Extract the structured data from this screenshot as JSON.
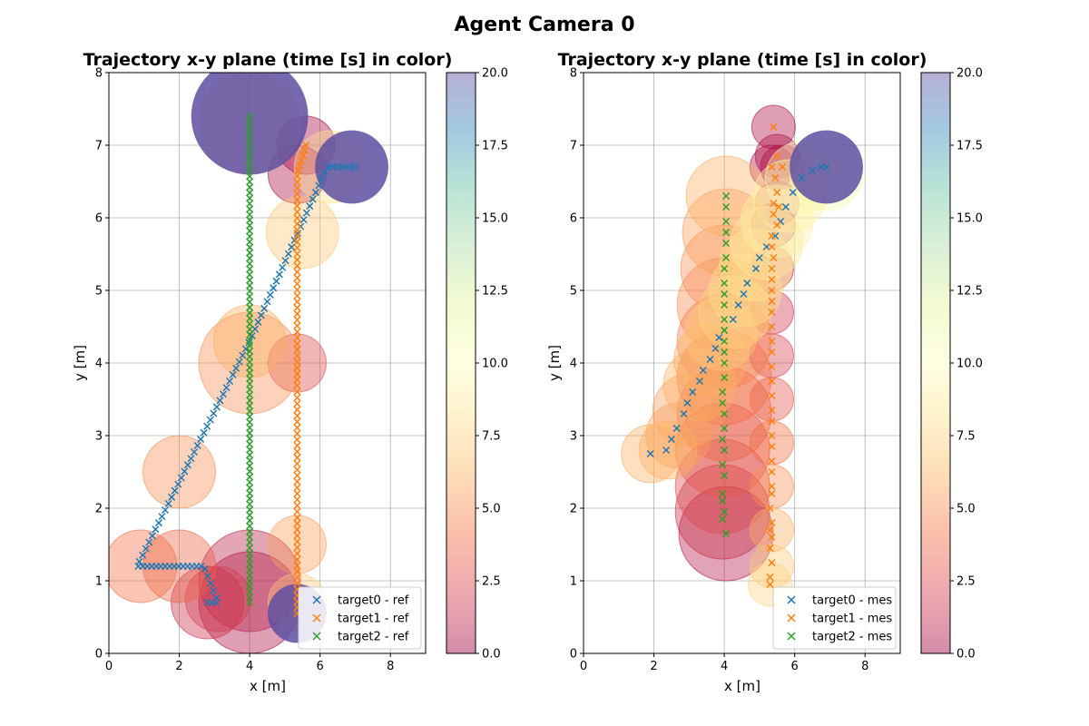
{
  "figure": {
    "suptitle": "Agent Camera 0"
  },
  "colorbar": {
    "min": 0.0,
    "max": 20.0,
    "ticks": [
      "0.0",
      "2.5",
      "5.0",
      "7.5",
      "10.0",
      "12.5",
      "15.0",
      "17.5",
      "20.0"
    ],
    "colormap": "Spectral",
    "alpha": 0.4
  },
  "colors": {
    "target0": "#1f77b4",
    "target1": "#ff7f0e",
    "target2": "#2ca02c",
    "grid": "#b0b0b0"
  },
  "chart_data": [
    {
      "type": "scatter",
      "title": "Trajectory x-y plane  (time [s] in color)",
      "xlabel": "x [m]",
      "ylabel": "y [m]",
      "xlim": [
        0,
        9
      ],
      "ylim": [
        0,
        8
      ],
      "xticks": [
        "0",
        "2",
        "4",
        "6",
        "8"
      ],
      "yticks": [
        "0",
        "1",
        "2",
        "3",
        "4",
        "5",
        "6",
        "7",
        "8"
      ],
      "grid": true,
      "legend_position": "lower-right",
      "series": [
        {
          "name": "target0 - ref",
          "marker": "x",
          "path": [
            [
              2.8,
              0.7
            ],
            [
              3.1,
              0.7
            ],
            [
              2.7,
              1.2
            ],
            [
              0.8,
              1.2
            ],
            [
              4.0,
              4.3
            ],
            [
              6.2,
              6.7
            ],
            [
              7.0,
              6.7
            ]
          ],
          "points": 90,
          "circles": [
            [
              2.8,
              0.7,
              0.5,
              1.5
            ],
            [
              3.1,
              0.75,
              0.45,
              2.0
            ],
            [
              2.0,
              1.2,
              0.5,
              3.5
            ],
            [
              0.9,
              1.2,
              0.5,
              4.0
            ],
            [
              2.0,
              2.5,
              0.5,
              5.0
            ],
            [
              4.0,
              4.3,
              0.5,
              6.0
            ],
            [
              5.5,
              5.8,
              0.5,
              7.0
            ],
            [
              6.3,
              6.7,
              0.5,
              8.0
            ],
            [
              6.9,
              6.7,
              0.5,
              20.0
            ]
          ]
        },
        {
          "name": "target1 - ref",
          "marker": "x",
          "path": [
            [
              5.6,
              7.0
            ],
            [
              5.35,
              6.6
            ],
            [
              5.35,
              0.55
            ]
          ],
          "points": 80,
          "circles": [
            [
              5.6,
              7.0,
              0.4,
              0.2
            ],
            [
              5.35,
              6.6,
              0.4,
              0.5
            ],
            [
              5.35,
              4.0,
              0.4,
              2.5
            ],
            [
              5.35,
              1.5,
              0.4,
              5.5
            ],
            [
              5.35,
              0.7,
              0.4,
              7.0
            ],
            [
              5.35,
              0.55,
              0.4,
              20.0
            ]
          ]
        },
        {
          "name": "target2 - ref",
          "marker": "x",
          "path": [
            [
              4.0,
              7.4
            ],
            [
              4.0,
              0.7
            ]
          ],
          "points": 90,
          "circles": [
            [
              4.0,
              7.3,
              0.7,
              7.0
            ],
            [
              4.0,
              4.0,
              0.7,
              5.0
            ],
            [
              4.0,
              1.0,
              0.7,
              1.0
            ],
            [
              4.0,
              0.7,
              0.7,
              0.5
            ],
            [
              4.0,
              7.4,
              0.8,
              20.0
            ]
          ]
        }
      ]
    },
    {
      "type": "scatter",
      "title": "Trajectory x-y plane  (time [s] in color)",
      "xlabel": "x [m]",
      "ylabel": "y [m]",
      "xlim": [
        0,
        9
      ],
      "ylim": [
        0,
        8
      ],
      "xticks": [
        "0",
        "2",
        "4",
        "6",
        "8"
      ],
      "yticks": [
        "0",
        "1",
        "2",
        "3",
        "4",
        "5",
        "6",
        "7",
        "8"
      ],
      "grid": true,
      "legend_position": "lower-right",
      "series": [
        {
          "name": "target0 - mes",
          "marker": "x",
          "points_list": [
            [
              1.9,
              2.75
            ],
            [
              2.35,
              2.8
            ],
            [
              2.5,
              2.95
            ],
            [
              2.65,
              3.1
            ],
            [
              2.85,
              3.3
            ],
            [
              2.95,
              3.45
            ],
            [
              3.1,
              3.6
            ],
            [
              3.3,
              3.75
            ],
            [
              3.4,
              3.9
            ],
            [
              3.6,
              4.05
            ],
            [
              3.75,
              4.2
            ],
            [
              3.85,
              4.35
            ],
            [
              4.0,
              4.45
            ],
            [
              4.25,
              4.6
            ],
            [
              4.4,
              4.8
            ],
            [
              4.55,
              4.95
            ],
            [
              4.65,
              5.1
            ],
            [
              4.9,
              5.3
            ],
            [
              5.0,
              5.45
            ],
            [
              5.2,
              5.6
            ],
            [
              5.45,
              5.75
            ],
            [
              5.6,
              5.95
            ],
            [
              5.75,
              6.15
            ],
            [
              5.95,
              6.35
            ],
            [
              6.2,
              6.55
            ],
            [
              6.5,
              6.65
            ],
            [
              6.75,
              6.7
            ],
            [
              6.9,
              6.7
            ]
          ],
          "circles": [
            [
              1.9,
              2.75,
              0.4,
              6.0
            ],
            [
              2.4,
              2.8,
              0.4,
              6.0
            ],
            [
              2.7,
              3.0,
              0.45,
              5.5
            ],
            [
              3.0,
              3.35,
              0.5,
              5.5
            ],
            [
              3.3,
              3.7,
              0.5,
              6.0
            ],
            [
              3.6,
              4.05,
              0.5,
              6.0
            ],
            [
              3.9,
              4.4,
              0.5,
              7.0
            ],
            [
              4.3,
              4.7,
              0.5,
              7.5
            ],
            [
              4.6,
              5.0,
              0.5,
              8.0
            ],
            [
              4.9,
              5.35,
              0.5,
              8.0
            ],
            [
              5.2,
              5.65,
              0.5,
              8.5
            ],
            [
              5.5,
              5.95,
              0.5,
              9.0
            ],
            [
              5.85,
              6.3,
              0.5,
              9.0
            ],
            [
              6.2,
              6.55,
              0.5,
              9.5
            ],
            [
              6.9,
              6.6,
              0.5,
              11.0
            ],
            [
              6.9,
              6.7,
              0.5,
              20.0
            ]
          ]
        },
        {
          "name": "target1 - mes",
          "marker": "x",
          "points_list": [
            [
              5.4,
              7.25
            ],
            [
              5.5,
              6.85
            ],
            [
              5.35,
              6.7
            ],
            [
              5.65,
              6.7
            ],
            [
              5.45,
              6.55
            ],
            [
              5.5,
              6.35
            ],
            [
              5.4,
              6.2
            ],
            [
              5.55,
              6.15
            ],
            [
              5.4,
              6.05
            ],
            [
              5.5,
              5.9
            ],
            [
              5.35,
              5.75
            ],
            [
              5.35,
              5.6
            ],
            [
              5.4,
              5.45
            ],
            [
              5.35,
              5.3
            ],
            [
              5.35,
              5.15
            ],
            [
              5.35,
              5.0
            ],
            [
              5.35,
              4.85
            ],
            [
              5.35,
              4.7
            ],
            [
              5.35,
              4.5
            ],
            [
              5.35,
              4.3
            ],
            [
              5.35,
              4.15
            ],
            [
              5.35,
              3.95
            ],
            [
              5.35,
              3.75
            ],
            [
              5.35,
              3.55
            ],
            [
              5.35,
              3.35
            ],
            [
              5.35,
              3.2
            ],
            [
              5.35,
              3.0
            ],
            [
              5.35,
              2.85
            ],
            [
              5.35,
              2.65
            ],
            [
              5.35,
              2.5
            ],
            [
              5.35,
              2.3
            ],
            [
              5.35,
              2.2
            ],
            [
              5.3,
              2.0
            ],
            [
              5.35,
              1.8
            ],
            [
              5.3,
              1.7
            ],
            [
              5.35,
              1.6
            ],
            [
              5.3,
              1.45
            ],
            [
              5.35,
              1.25
            ],
            [
              5.3,
              1.05
            ],
            [
              5.3,
              0.95
            ]
          ],
          "circles": [
            [
              5.4,
              7.25,
              0.3,
              0.5
            ],
            [
              5.5,
              6.85,
              0.3,
              0.5
            ],
            [
              5.35,
              6.7,
              0.3,
              0.5
            ],
            [
              5.65,
              6.7,
              0.3,
              0.5
            ],
            [
              5.5,
              6.2,
              0.3,
              0.8
            ],
            [
              5.4,
              5.9,
              0.3,
              1.0
            ],
            [
              5.35,
              5.3,
              0.3,
              1.5
            ],
            [
              5.35,
              4.7,
              0.3,
              1.8
            ],
            [
              5.35,
              4.1,
              0.3,
              2.2
            ],
            [
              5.35,
              3.5,
              0.3,
              3.0
            ],
            [
              5.35,
              2.9,
              0.3,
              4.0
            ],
            [
              5.35,
              2.3,
              0.3,
              5.0
            ],
            [
              5.35,
              1.7,
              0.3,
              6.0
            ],
            [
              5.35,
              1.2,
              0.3,
              7.0
            ],
            [
              5.3,
              0.95,
              0.3,
              7.5
            ]
          ]
        },
        {
          "name": "target2 - mes",
          "marker": "x",
          "points_list": [
            [
              4.05,
              6.3
            ],
            [
              4.05,
              6.15
            ],
            [
              4.05,
              5.95
            ],
            [
              4.05,
              5.8
            ],
            [
              4.05,
              5.65
            ],
            [
              4.05,
              5.45
            ],
            [
              4.0,
              5.3
            ],
            [
              4.0,
              5.1
            ],
            [
              4.0,
              4.95
            ],
            [
              4.0,
              4.8
            ],
            [
              4.0,
              4.6
            ],
            [
              4.0,
              4.45
            ],
            [
              4.0,
              4.3
            ],
            [
              4.0,
              4.15
            ],
            [
              4.0,
              4.0
            ],
            [
              4.0,
              3.8
            ],
            [
              3.95,
              3.6
            ],
            [
              3.95,
              3.45
            ],
            [
              4.0,
              3.3
            ],
            [
              4.0,
              3.1
            ],
            [
              3.95,
              2.95
            ],
            [
              4.0,
              2.8
            ],
            [
              3.95,
              2.6
            ],
            [
              4.0,
              2.45
            ],
            [
              3.95,
              2.2
            ],
            [
              3.95,
              2.1
            ],
            [
              4.0,
              1.95
            ],
            [
              3.95,
              1.85
            ],
            [
              4.05,
              1.65
            ]
          ],
          "circles": [
            [
              4.05,
              6.3,
              0.55,
              6.0
            ],
            [
              4.05,
              5.8,
              0.6,
              5.5
            ],
            [
              4.0,
              5.3,
              0.6,
              5.0
            ],
            [
              4.0,
              4.8,
              0.65,
              4.8
            ],
            [
              4.0,
              4.3,
              0.65,
              4.5
            ],
            [
              4.0,
              3.8,
              0.65,
              4.0
            ],
            [
              4.0,
              3.3,
              0.65,
              3.5
            ],
            [
              3.95,
              2.8,
              0.65,
              3.0
            ],
            [
              3.95,
              2.3,
              0.65,
              2.5
            ],
            [
              3.95,
              1.95,
              0.65,
              1.5
            ],
            [
              4.05,
              1.65,
              0.65,
              0.8
            ]
          ]
        }
      ]
    }
  ]
}
